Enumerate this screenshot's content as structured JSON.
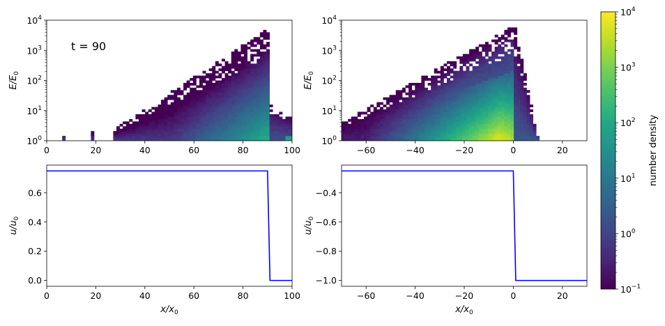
{
  "figure": {
    "annotation": "t = 90",
    "colorbar": {
      "label": "number density",
      "colormap": "viridis",
      "scale": "log",
      "range": [
        0.1,
        10000
      ],
      "tick_values": [
        0.1,
        1,
        10,
        100,
        1000,
        10000
      ],
      "tick_labels": [
        {
          "base": "10",
          "exp": "−1"
        },
        {
          "base": "10",
          "exp": "0"
        },
        {
          "base": "10",
          "exp": "1"
        },
        {
          "base": "10",
          "exp": "2"
        },
        {
          "base": "10",
          "exp": "3"
        },
        {
          "base": "10",
          "exp": "4"
        }
      ]
    }
  },
  "chart_data": [
    {
      "id": "top-left",
      "type": "heatmap",
      "xlabel": "",
      "ylabel": {
        "main": "E/E",
        "sub": "0"
      },
      "xlim": [
        0,
        100
      ],
      "ylim": [
        1,
        10000
      ],
      "yscale": "log",
      "xticks": [
        0,
        20,
        40,
        60,
        80,
        100
      ],
      "yticks": [
        1,
        10,
        100,
        1000,
        10000
      ],
      "ytick_labels": [
        {
          "base": "10",
          "exp": "0"
        },
        {
          "base": "10",
          "exp": "1"
        },
        {
          "base": "10",
          "exp": "2"
        },
        {
          "base": "10",
          "exp": "3"
        },
        {
          "base": "10",
          "exp": "4"
        }
      ],
      "distribution": {
        "x_range": [
          5,
          100
        ],
        "shock_x": 90,
        "max_log_energy_at_shock": 3.7,
        "min_x": 26,
        "peak_density_at_shock": 20
      }
    },
    {
      "id": "top-right",
      "type": "heatmap",
      "xlabel": "",
      "ylabel": {
        "main": "E/E",
        "sub": "0"
      },
      "xlim": [
        -70,
        30
      ],
      "ylim": [
        1,
        10000
      ],
      "yscale": "log",
      "xticks": [
        -60,
        -40,
        -20,
        0,
        20
      ],
      "xtick_labels": [
        "−60",
        "−40",
        "−20",
        "0",
        "20"
      ],
      "yticks": [
        1,
        10,
        100,
        1000,
        10000
      ],
      "ytick_labels": [
        {
          "base": "10",
          "exp": "0"
        },
        {
          "base": "10",
          "exp": "1"
        },
        {
          "base": "10",
          "exp": "2"
        },
        {
          "base": "10",
          "exp": "3"
        },
        {
          "base": "10",
          "exp": "4"
        }
      ],
      "distribution": {
        "x_range": [
          -70,
          10
        ],
        "shock_x": 0,
        "max_log_energy_at_shock": 3.8,
        "peak_density_near_shock": 8000
      }
    },
    {
      "id": "bottom-left",
      "type": "line",
      "xlabel": {
        "main": "x/x",
        "sub": "0"
      },
      "ylabel": {
        "main": "u/u",
        "sub": "0"
      },
      "xlim": [
        0,
        100
      ],
      "ylim": [
        -0.04,
        0.79
      ],
      "xticks": [
        0,
        20,
        40,
        60,
        80,
        100
      ],
      "yticks": [
        0.0,
        0.2,
        0.4,
        0.6
      ],
      "ytick_labels": [
        "0.0",
        "0.2",
        "0.4",
        "0.6"
      ],
      "series": [
        {
          "color": "#0000ff",
          "x": [
            0,
            90,
            90.5,
            91,
            100
          ],
          "y": [
            0.75,
            0.75,
            0.375,
            0,
            0
          ]
        }
      ]
    },
    {
      "id": "bottom-right",
      "type": "line",
      "xlabel": {
        "main": "x/x",
        "sub": "0"
      },
      "ylabel": {
        "main": "u/u",
        "sub": "0"
      },
      "xlim": [
        -70,
        30
      ],
      "ylim": [
        -1.04,
        -0.21
      ],
      "xticks": [
        -60,
        -40,
        -20,
        0,
        20
      ],
      "xtick_labels": [
        "−60",
        "−40",
        "−20",
        "0",
        "20"
      ],
      "yticks": [
        -1.0,
        -0.8,
        -0.6,
        -0.4
      ],
      "ytick_labels": [
        "−1.0",
        "−0.8",
        "−0.6",
        "−0.4"
      ],
      "series": [
        {
          "color": "#0000ff",
          "x": [
            -70,
            0,
            0.5,
            1,
            30
          ],
          "y": [
            -0.25,
            -0.25,
            -0.625,
            -1,
            -1
          ]
        }
      ]
    }
  ]
}
